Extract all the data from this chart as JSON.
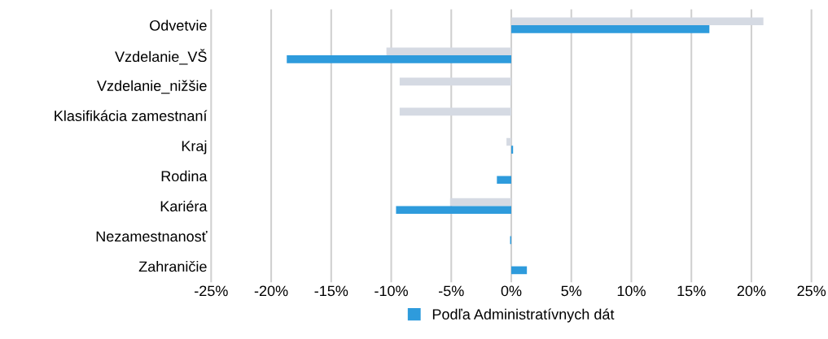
{
  "chart_data": {
    "type": "bar",
    "orientation": "horizontal",
    "categories": [
      "Odvetvie",
      "Vzdelanie_VŠ",
      "Vzdelanie_nižšie",
      "Klasifikácia zamestnaní",
      "Kraj",
      "Rodina",
      "Kariéra",
      "Nezamestnanosť",
      "Zahraničie"
    ],
    "series": [
      {
        "color": "#d5dae3",
        "values": [
          21.0,
          -10.4,
          -9.3,
          -9.3,
          -0.4,
          0,
          -5.1,
          0,
          0
        ]
      },
      {
        "name": "Podľa Administratívnych dát",
        "color": "#2e9bdc",
        "values": [
          16.5,
          -18.7,
          0,
          0,
          0.15,
          -1.2,
          -9.6,
          -0.1,
          1.3
        ]
      }
    ],
    "xlim": [
      -25,
      25
    ],
    "xticks": [
      {
        "value": -25,
        "label": "-25%"
      },
      {
        "value": -20,
        "label": "-20%"
      },
      {
        "value": -15,
        "label": "-15%"
      },
      {
        "value": -10,
        "label": "-10%"
      },
      {
        "value": -5,
        "label": "-5%"
      },
      {
        "value": 0,
        "label": "0%"
      },
      {
        "value": 5,
        "label": "5%"
      },
      {
        "value": 10,
        "label": "10%"
      },
      {
        "value": 15,
        "label": "15%"
      },
      {
        "value": 20,
        "label": "20%"
      },
      {
        "value": 25,
        "label": "25%"
      }
    ],
    "grid": "x",
    "legend": "bottom"
  }
}
